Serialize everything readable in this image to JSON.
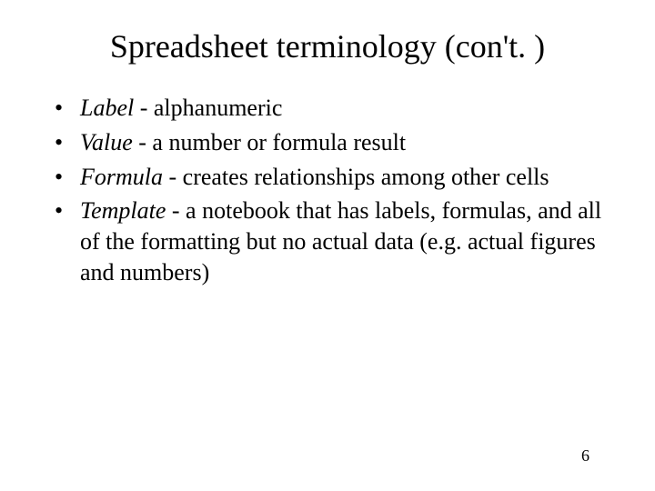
{
  "title": "Spreadsheet terminology (con't. )",
  "bullets": [
    {
      "term": "Label",
      "rest": " - alphanumeric"
    },
    {
      "term": "Value",
      "rest": " - a number or formula result"
    },
    {
      "term": "Formula",
      "rest": " - creates relationships among other cells"
    },
    {
      "term": "Template",
      "rest": " - a notebook that has labels, formulas, and all of the formatting but no actual data (e.g. actual figures and numbers)"
    }
  ],
  "page_number": "6",
  "styling": {
    "background_color": "#ffffff",
    "text_color": "#000000",
    "title_fontsize": 36,
    "body_fontsize": 26,
    "font_family": "Times New Roman",
    "term_style": "italic"
  }
}
